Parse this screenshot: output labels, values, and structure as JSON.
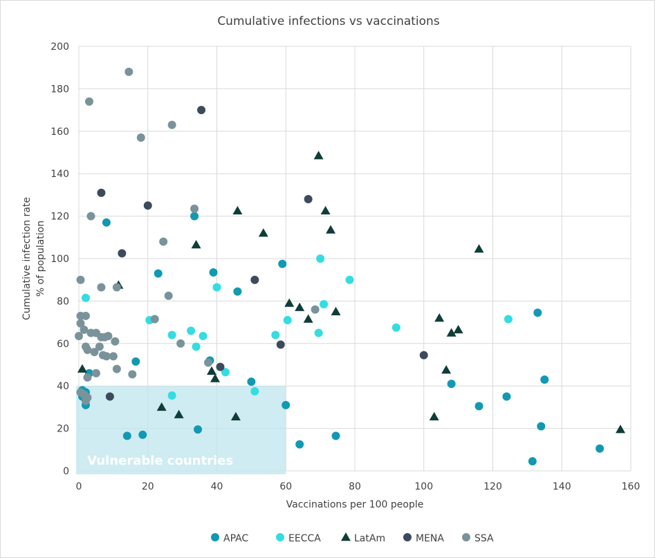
{
  "chart_data": {
    "type": "scatter",
    "title": "Cumulative infections vs vaccinations",
    "xlabel": "Vaccinations per 100 people",
    "ylabel_lines": [
      "Cumulative infection rate",
      "% of population"
    ],
    "xlim": [
      0,
      160
    ],
    "ylim": [
      0,
      200
    ],
    "xticks": [
      0,
      20,
      40,
      60,
      80,
      100,
      120,
      140,
      160
    ],
    "yticks": [
      0,
      20,
      40,
      60,
      80,
      100,
      120,
      140,
      160,
      180,
      200
    ],
    "grid": true,
    "legend_position": "bottom",
    "highlight_region": {
      "label": "Vulnerable countries",
      "x": [
        0,
        60
      ],
      "y": [
        0,
        40
      ],
      "color": "#bde6ee"
    },
    "series": [
      {
        "name": "APAC",
        "marker": "circle",
        "color": "#1199b3",
        "points": [
          [
            8,
            117
          ],
          [
            33.5,
            120
          ],
          [
            23,
            93
          ],
          [
            39,
            93.5
          ],
          [
            59,
            97.5
          ],
          [
            46,
            84.5
          ],
          [
            16.5,
            51.5
          ],
          [
            38,
            52
          ],
          [
            50,
            42
          ],
          [
            60,
            31
          ],
          [
            14,
            16.5
          ],
          [
            18.5,
            17
          ],
          [
            34.5,
            19.5
          ],
          [
            64,
            12.5
          ],
          [
            74.5,
            16.5
          ],
          [
            108,
            41
          ],
          [
            116,
            30.5
          ],
          [
            124,
            35
          ],
          [
            133,
            74.5
          ],
          [
            135,
            43
          ],
          [
            134,
            21
          ],
          [
            131.5,
            4.5
          ],
          [
            151,
            10.5
          ],
          [
            1,
            38
          ],
          [
            2,
            37
          ],
          [
            1,
            35
          ],
          [
            2,
            31
          ],
          [
            3,
            46
          ]
        ]
      },
      {
        "name": "EECCA",
        "marker": "circle",
        "color": "#33dde1",
        "points": [
          [
            2,
            81.5
          ],
          [
            20.5,
            71
          ],
          [
            27,
            64
          ],
          [
            32.5,
            66
          ],
          [
            34,
            58.5
          ],
          [
            36,
            63.5
          ],
          [
            40,
            86.5
          ],
          [
            42.5,
            46.5
          ],
          [
            51,
            37.5
          ],
          [
            57,
            64
          ],
          [
            60.5,
            71
          ],
          [
            69.5,
            65
          ],
          [
            70,
            100
          ],
          [
            71,
            78.5
          ],
          [
            78.5,
            90
          ],
          [
            92,
            67.5
          ],
          [
            124.5,
            71.5
          ],
          [
            27,
            35.5
          ]
        ]
      },
      {
        "name": "LatAm",
        "marker": "triangle",
        "color": "#0f3d38",
        "points": [
          [
            11.5,
            87.5
          ],
          [
            1,
            48
          ],
          [
            24,
            30
          ],
          [
            29,
            26.5
          ],
          [
            34,
            106.5
          ],
          [
            38.5,
            47
          ],
          [
            39.5,
            43.5
          ],
          [
            45.5,
            25.5
          ],
          [
            46,
            122.5
          ],
          [
            53.5,
            112
          ],
          [
            61,
            79
          ],
          [
            64,
            77
          ],
          [
            66.5,
            71.5
          ],
          [
            69.5,
            148.5
          ],
          [
            71.5,
            122.5
          ],
          [
            73,
            113.5
          ],
          [
            74.5,
            75
          ],
          [
            103,
            25.5
          ],
          [
            104.5,
            72
          ],
          [
            106.5,
            47.5
          ],
          [
            108,
            65
          ],
          [
            110,
            66.5
          ],
          [
            116,
            104.5
          ],
          [
            157,
            19.5
          ]
        ]
      },
      {
        "name": "MENA",
        "marker": "circle",
        "color": "#3d4a5d",
        "points": [
          [
            6.5,
            131
          ],
          [
            12.5,
            102.5
          ],
          [
            20,
            125
          ],
          [
            35.5,
            170
          ],
          [
            41,
            49
          ],
          [
            51,
            90
          ],
          [
            58.5,
            59.5
          ],
          [
            66.5,
            128
          ],
          [
            100,
            54.5
          ],
          [
            9,
            35
          ]
        ]
      },
      {
        "name": "SSA",
        "marker": "circle",
        "color": "#7a939a",
        "points": [
          [
            14.5,
            188
          ],
          [
            3,
            174
          ],
          [
            27,
            163
          ],
          [
            18,
            157
          ],
          [
            33.5,
            123.5
          ],
          [
            3.5,
            120
          ],
          [
            24.5,
            108
          ],
          [
            0.5,
            90
          ],
          [
            6.5,
            86.5
          ],
          [
            11,
            86.5
          ],
          [
            26,
            82.5
          ],
          [
            68.5,
            76
          ],
          [
            0.5,
            73
          ],
          [
            2,
            73
          ],
          [
            0.5,
            69.5
          ],
          [
            1.5,
            66.5
          ],
          [
            3.5,
            65
          ],
          [
            5,
            65
          ],
          [
            6.5,
            63
          ],
          [
            7.5,
            63
          ],
          [
            8.5,
            63.5
          ],
          [
            0,
            63.5
          ],
          [
            10.5,
            61
          ],
          [
            2,
            58.5
          ],
          [
            6,
            58.5
          ],
          [
            29.5,
            60
          ],
          [
            2.5,
            57
          ],
          [
            4.5,
            56
          ],
          [
            7,
            54.5
          ],
          [
            8,
            54
          ],
          [
            10,
            54
          ],
          [
            11,
            48
          ],
          [
            15.5,
            45.5
          ],
          [
            5,
            46
          ],
          [
            2.5,
            44
          ],
          [
            37.5,
            51
          ],
          [
            22,
            71.5
          ],
          [
            0.5,
            37
          ],
          [
            1.5,
            36
          ],
          [
            2.5,
            34.5
          ],
          [
            2,
            33
          ]
        ]
      }
    ]
  }
}
